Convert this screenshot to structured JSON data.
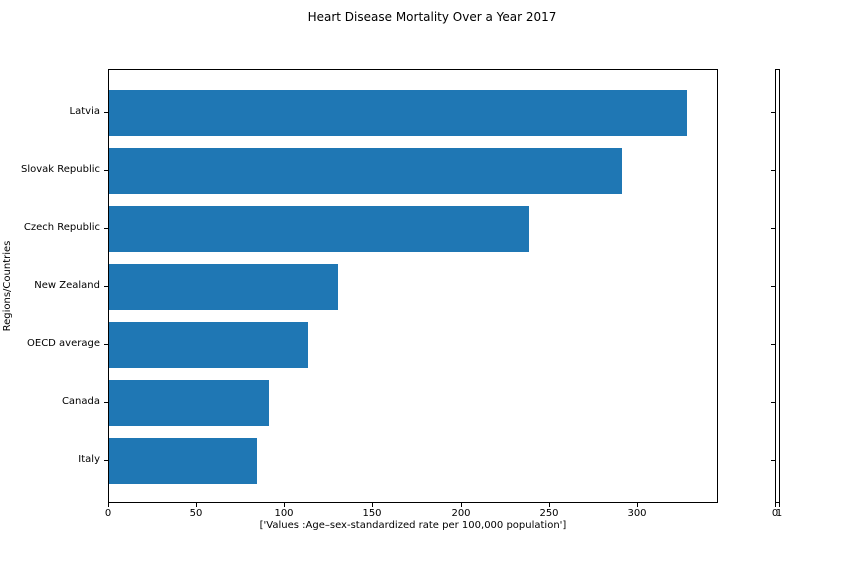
{
  "chart_data": {
    "type": "bar",
    "orientation": "horizontal",
    "title": "Heart Disease Mortality Over a Year 2017",
    "xlabel": "['Values :Age–sex-standardized rate per 100,000 population']",
    "ylabel": "Regions/Countries",
    "categories": [
      "Latvia",
      "Slovak Republic",
      "Czech Republic",
      "New Zealand",
      "OECD average",
      "Canada",
      "Italy"
    ],
    "values": [
      328,
      291,
      238,
      130,
      113,
      91,
      84
    ],
    "xticks": [
      0,
      50,
      100,
      150,
      200,
      250,
      300
    ],
    "xlim": [
      0,
      346
    ],
    "bar_color": "#1f77b4",
    "grid": false,
    "legend": "none",
    "secondary_axis": {
      "xtick_labels": [
        "0",
        "1"
      ],
      "ytick_count": 7
    }
  }
}
